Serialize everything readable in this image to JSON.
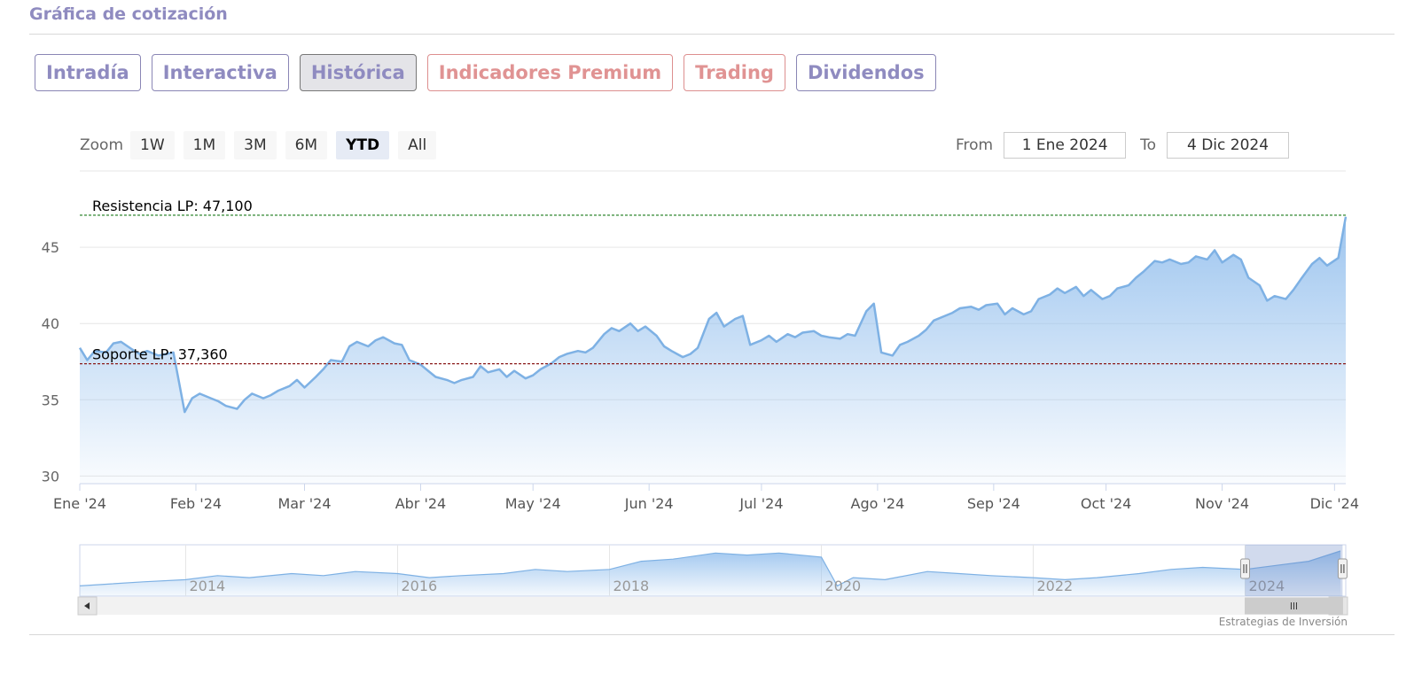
{
  "header": {
    "title": "Gráfica de cotización"
  },
  "tabs": [
    {
      "label": "Intradía",
      "name": "tab-intradia",
      "style": "normal"
    },
    {
      "label": "Interactiva",
      "name": "tab-interactiva",
      "style": "normal"
    },
    {
      "label": "Histórica",
      "name": "tab-historica",
      "style": "active"
    },
    {
      "label": "Indicadores Premium",
      "name": "tab-indicadores-premium",
      "style": "premium"
    },
    {
      "label": "Trading",
      "name": "tab-trading",
      "style": "premium"
    },
    {
      "label": "Dividendos",
      "name": "tab-dividendos",
      "style": "normal"
    }
  ],
  "range_selector": {
    "zoom_label": "Zoom",
    "buttons": [
      "1W",
      "1M",
      "3M",
      "6M",
      "YTD",
      "All"
    ],
    "selected": "YTD",
    "from_label": "From",
    "from_value": "1 Ene 2024",
    "to_label": "To",
    "to_value": "4 Dic 2024"
  },
  "colors": {
    "line": "#7eb1e4",
    "area_top": "#98c2ee",
    "resistance": "#1a7a1a",
    "support": "#8b1a1a",
    "grid": "#e6e6e6"
  },
  "chart_data": {
    "type": "area",
    "ylim": [
      29.5,
      50
    ],
    "y_ticks": [
      30,
      35,
      40,
      45
    ],
    "x_range": [
      "2024-01-01",
      "2024-12-04"
    ],
    "x_ticks": [
      {
        "date": "2024-01-01",
        "label": "Ene '24"
      },
      {
        "date": "2024-02-01",
        "label": "Feb '24"
      },
      {
        "date": "2024-03-01",
        "label": "Mar '24"
      },
      {
        "date": "2024-04-01",
        "label": "Abr '24"
      },
      {
        "date": "2024-05-01",
        "label": "May '24"
      },
      {
        "date": "2024-06-01",
        "label": "Jun '24"
      },
      {
        "date": "2024-07-01",
        "label": "Jul '24"
      },
      {
        "date": "2024-08-01",
        "label": "Ago '24"
      },
      {
        "date": "2024-09-01",
        "label": "Sep '24"
      },
      {
        "date": "2024-10-01",
        "label": "Oct '24"
      },
      {
        "date": "2024-11-01",
        "label": "Nov '24"
      },
      {
        "date": "2024-12-01",
        "label": "Dic '24"
      }
    ],
    "series": [
      {
        "x": [
          "2024-01-01",
          "2024-01-03",
          "2024-01-05",
          "2024-01-08",
          "2024-01-10",
          "2024-01-12",
          "2024-01-15",
          "2024-01-17",
          "2024-01-19",
          "2024-01-22",
          "2024-01-24",
          "2024-01-26",
          "2024-01-29",
          "2024-01-31",
          "2024-02-02",
          "2024-02-05",
          "2024-02-07",
          "2024-02-09",
          "2024-02-12",
          "2024-02-14",
          "2024-02-16",
          "2024-02-19",
          "2024-02-21",
          "2024-02-23",
          "2024-02-26",
          "2024-02-28",
          "2024-03-01",
          "2024-03-04",
          "2024-03-06",
          "2024-03-08",
          "2024-03-11",
          "2024-03-13",
          "2024-03-15",
          "2024-03-18",
          "2024-03-20",
          "2024-03-22",
          "2024-03-25",
          "2024-03-27",
          "2024-03-29",
          "2024-04-01",
          "2024-04-03",
          "2024-04-05",
          "2024-04-08",
          "2024-04-10",
          "2024-04-12",
          "2024-04-15",
          "2024-04-17",
          "2024-04-19",
          "2024-04-22",
          "2024-04-24",
          "2024-04-26",
          "2024-04-29",
          "2024-05-01",
          "2024-05-03",
          "2024-05-06",
          "2024-05-08",
          "2024-05-10",
          "2024-05-13",
          "2024-05-15",
          "2024-05-17",
          "2024-05-20",
          "2024-05-22",
          "2024-05-24",
          "2024-05-27",
          "2024-05-29",
          "2024-05-31",
          "2024-06-03",
          "2024-06-05",
          "2024-06-07",
          "2024-06-10",
          "2024-06-12",
          "2024-06-14",
          "2024-06-17",
          "2024-06-19",
          "2024-06-21",
          "2024-06-24",
          "2024-06-26",
          "2024-06-28",
          "2024-07-01",
          "2024-07-03",
          "2024-07-05",
          "2024-07-08",
          "2024-07-10",
          "2024-07-12",
          "2024-07-15",
          "2024-07-17",
          "2024-07-19",
          "2024-07-22",
          "2024-07-24",
          "2024-07-26",
          "2024-07-29",
          "2024-07-31",
          "2024-08-02",
          "2024-08-05",
          "2024-08-07",
          "2024-08-09",
          "2024-08-12",
          "2024-08-14",
          "2024-08-16",
          "2024-08-19",
          "2024-08-21",
          "2024-08-23",
          "2024-08-26",
          "2024-08-28",
          "2024-08-30",
          "2024-09-02",
          "2024-09-04",
          "2024-09-06",
          "2024-09-09",
          "2024-09-11",
          "2024-09-13",
          "2024-09-16",
          "2024-09-18",
          "2024-09-20",
          "2024-09-23",
          "2024-09-25",
          "2024-09-27",
          "2024-09-30",
          "2024-10-02",
          "2024-10-04",
          "2024-10-07",
          "2024-10-09",
          "2024-10-11",
          "2024-10-14",
          "2024-10-16",
          "2024-10-18",
          "2024-10-21",
          "2024-10-23",
          "2024-10-25",
          "2024-10-28",
          "2024-10-30",
          "2024-11-01",
          "2024-11-04",
          "2024-11-06",
          "2024-11-08",
          "2024-11-11",
          "2024-11-13",
          "2024-11-15",
          "2024-11-18",
          "2024-11-20",
          "2024-11-22",
          "2024-11-25",
          "2024-11-27",
          "2024-11-29",
          "2024-12-02",
          "2024-12-04"
        ],
        "values": [
          38.4,
          37.6,
          38.2,
          38.1,
          38.7,
          38.8,
          38.3,
          38.0,
          38.2,
          37.9,
          38.0,
          38.1,
          34.2,
          35.1,
          35.4,
          35.1,
          34.9,
          34.6,
          34.4,
          35.0,
          35.4,
          35.1,
          35.3,
          35.6,
          35.9,
          36.3,
          35.8,
          36.5,
          37.0,
          37.6,
          37.5,
          38.5,
          38.8,
          38.5,
          38.9,
          39.1,
          38.7,
          38.6,
          37.6,
          37.3,
          36.9,
          36.5,
          36.3,
          36.1,
          36.3,
          36.5,
          37.2,
          36.8,
          37.0,
          36.5,
          36.9,
          36.4,
          36.6,
          37.0,
          37.4,
          37.8,
          38.0,
          38.2,
          38.1,
          38.4,
          39.3,
          39.7,
          39.5,
          40.0,
          39.5,
          39.8,
          39.2,
          38.5,
          38.2,
          37.8,
          38.0,
          38.4,
          40.3,
          40.7,
          39.8,
          40.3,
          40.5,
          38.6,
          38.9,
          39.2,
          38.8,
          39.3,
          39.1,
          39.4,
          39.5,
          39.2,
          39.1,
          39.0,
          39.3,
          39.2,
          40.8,
          41.3,
          38.1,
          37.9,
          38.6,
          38.8,
          39.2,
          39.6,
          40.2,
          40.5,
          40.7,
          41.0,
          41.1,
          40.9,
          41.2,
          41.3,
          40.6,
          41.0,
          40.6,
          40.8,
          41.6,
          41.9,
          42.3,
          42.0,
          42.4,
          41.8,
          42.2,
          41.6,
          41.8,
          42.3,
          42.5,
          43.0,
          43.4,
          44.1,
          44.0,
          44.2,
          43.9,
          44.0,
          44.4,
          44.2,
          44.8,
          44.0,
          44.5,
          44.2,
          43.0,
          42.5,
          41.5,
          41.8,
          41.6,
          42.2,
          42.9,
          43.9,
          44.3,
          43.8,
          44.3,
          47.0
        ]
      }
    ],
    "plot_lines": [
      {
        "label": "Resistencia LP: 47,100",
        "value": 47.1
      },
      {
        "label": "Soporte LP: 37,360",
        "value": 37.36
      }
    ]
  },
  "navigator": {
    "year_labels": [
      "2014",
      "2016",
      "2018",
      "2020",
      "2022",
      "2024"
    ],
    "range": [
      2013.0,
      2024.95
    ],
    "selection": [
      2024.0,
      2024.92
    ],
    "x": [
      2013.0,
      2013.3,
      2013.6,
      2014.0,
      2014.3,
      2014.6,
      2015.0,
      2015.3,
      2015.6,
      2016.0,
      2016.3,
      2016.6,
      2017.0,
      2017.3,
      2017.6,
      2018.0,
      2018.3,
      2018.6,
      2019.0,
      2019.3,
      2019.6,
      2020.0,
      2020.15,
      2020.3,
      2020.6,
      2021.0,
      2021.3,
      2021.6,
      2022.0,
      2022.3,
      2022.6,
      2023.0,
      2023.3,
      2023.6,
      2024.0,
      2024.3,
      2024.6,
      2024.9
    ],
    "values": [
      30,
      31,
      32,
      33,
      35,
      34,
      36,
      35,
      37,
      36,
      34,
      35,
      36,
      38,
      37,
      38,
      42,
      43,
      46,
      45,
      46,
      44,
      30,
      34,
      33,
      37,
      36,
      35,
      34,
      33,
      34,
      36,
      38,
      39,
      38,
      40,
      42,
      47
    ]
  },
  "credit": "Estrategias de Inversión"
}
